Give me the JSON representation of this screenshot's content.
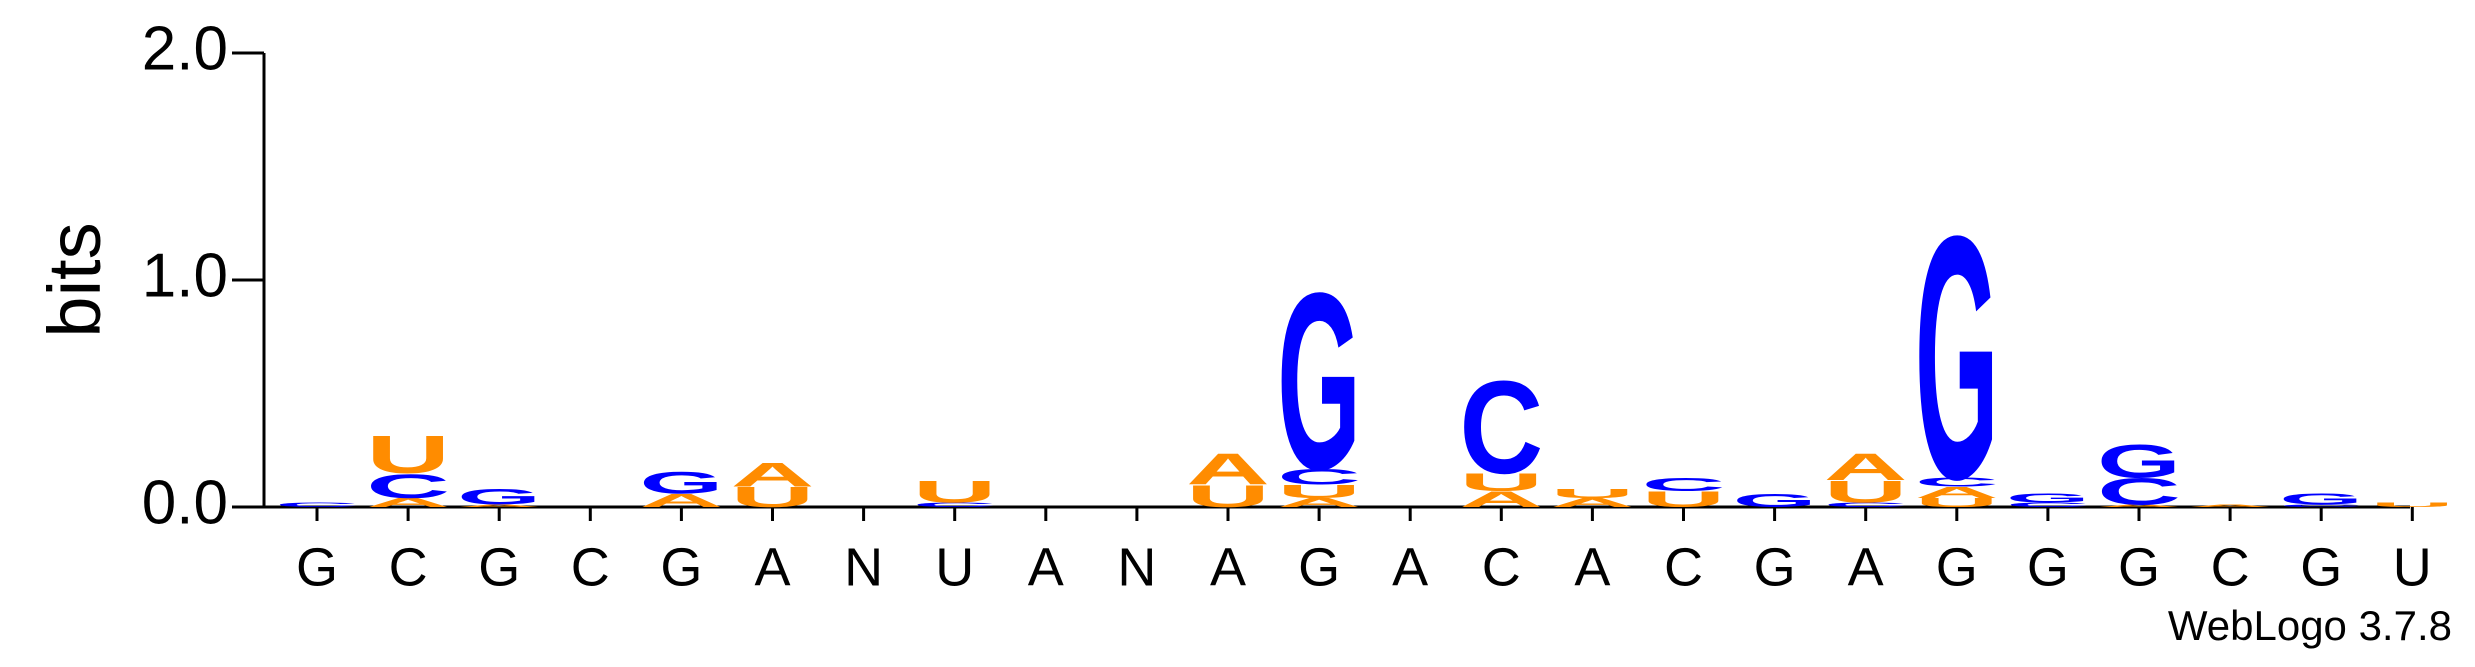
{
  "chart_data": {
    "type": "sequence-logo",
    "y_label": "bits",
    "footer": "WebLogo 3.7.8",
    "ylim": [
      0,
      2
    ],
    "yticks": [
      {
        "value": 0,
        "label": "0.0"
      },
      {
        "value": 1,
        "label": "1.0"
      },
      {
        "value": 2,
        "label": "2.0"
      }
    ],
    "colors": {
      "G": "#0000ff",
      "C": "#0000ff",
      "A": "#ff8c00",
      "U": "#ff8c00"
    },
    "categories": [
      "G",
      "C",
      "G",
      "C",
      "G",
      "A",
      "N",
      "U",
      "A",
      "N",
      "A",
      "G",
      "A",
      "C",
      "A",
      "C",
      "G",
      "A",
      "G",
      "G",
      "G",
      "C",
      "G",
      "U"
    ],
    "positions": [
      {
        "stack": [
          {
            "letter": "C",
            "value": 0.02
          }
        ]
      },
      {
        "stack": [
          {
            "letter": "A",
            "value": 0.04
          },
          {
            "letter": "C",
            "value": 0.11
          },
          {
            "letter": "U",
            "value": 0.17
          }
        ]
      },
      {
        "stack": [
          {
            "letter": "A",
            "value": 0.01
          },
          {
            "letter": "G",
            "value": 0.07
          }
        ]
      },
      {
        "stack": []
      },
      {
        "stack": [
          {
            "letter": "A",
            "value": 0.06
          },
          {
            "letter": "G",
            "value": 0.1
          }
        ]
      },
      {
        "stack": [
          {
            "letter": "U",
            "value": 0.09
          },
          {
            "letter": "A",
            "value": 0.11
          }
        ]
      },
      {
        "stack": []
      },
      {
        "stack": [
          {
            "letter": "C",
            "value": 0.02
          },
          {
            "letter": "U",
            "value": 0.1
          }
        ]
      },
      {
        "stack": []
      },
      {
        "stack": []
      },
      {
        "stack": [
          {
            "letter": "U",
            "value": 0.1
          },
          {
            "letter": "A",
            "value": 0.14
          }
        ]
      },
      {
        "stack": [
          {
            "letter": "A",
            "value": 0.04
          },
          {
            "letter": "U",
            "value": 0.06
          },
          {
            "letter": "C",
            "value": 0.07
          },
          {
            "letter": "G",
            "value": 0.8
          }
        ]
      },
      {
        "stack": []
      },
      {
        "stack": [
          {
            "letter": "A",
            "value": 0.07
          },
          {
            "letter": "U",
            "value": 0.08
          },
          {
            "letter": "C",
            "value": 0.42
          }
        ]
      },
      {
        "stack": [
          {
            "letter": "A",
            "value": 0.04
          },
          {
            "letter": "U",
            "value": 0.04
          }
        ]
      },
      {
        "stack": [
          {
            "letter": "U",
            "value": 0.07
          },
          {
            "letter": "C",
            "value": 0.06
          }
        ]
      },
      {
        "stack": [
          {
            "letter": "G",
            "value": 0.06
          }
        ]
      },
      {
        "stack": [
          {
            "letter": "C",
            "value": 0.02
          },
          {
            "letter": "U",
            "value": 0.1
          },
          {
            "letter": "A",
            "value": 0.12
          }
        ]
      },
      {
        "stack": [
          {
            "letter": "U",
            "value": 0.04
          },
          {
            "letter": "A",
            "value": 0.05
          },
          {
            "letter": "C",
            "value": 0.04
          },
          {
            "letter": "G",
            "value": 1.1
          }
        ]
      },
      {
        "stack": [
          {
            "letter": "C",
            "value": 0.02
          },
          {
            "letter": "G",
            "value": 0.04
          }
        ]
      },
      {
        "stack": [
          {
            "letter": "A",
            "value": 0.01
          },
          {
            "letter": "C",
            "value": 0.12
          },
          {
            "letter": "G",
            "value": 0.15
          }
        ]
      },
      {
        "stack": [
          {
            "letter": "A",
            "value": 0.01
          }
        ]
      },
      {
        "stack": [
          {
            "letter": "C",
            "value": 0.01
          },
          {
            "letter": "G",
            "value": 0.05
          }
        ]
      },
      {
        "stack": [
          {
            "letter": "U",
            "value": 0.02
          }
        ]
      }
    ]
  }
}
